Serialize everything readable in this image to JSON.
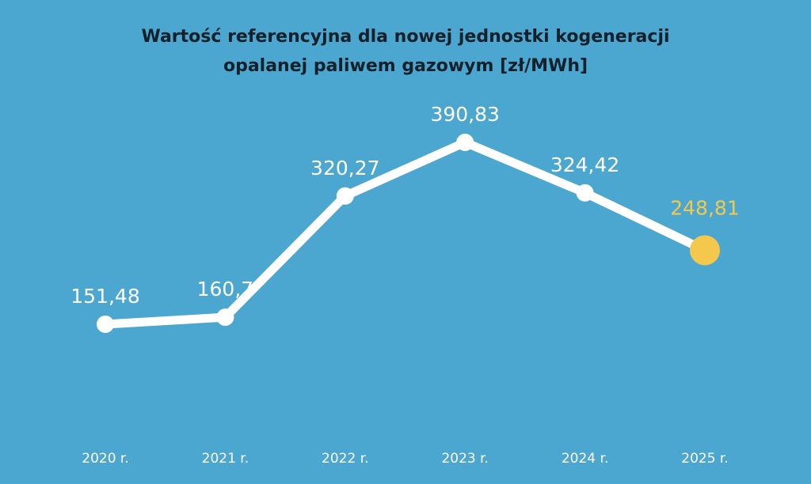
{
  "colors": {
    "background": "#4ba7cf",
    "line": "#ffffff",
    "highlight": "#f4c84c",
    "title_text": "#14202a",
    "label_text": "#ffffff"
  },
  "chart_data": {
    "type": "line",
    "title_lines": [
      "Wartość referencyjna dla nowej jednostki kogeneracji",
      "opalanej paliwem gazowym [zł/MWh]"
    ],
    "categories": [
      "2020 r.",
      "2021 r.",
      "2022 r.",
      "2023 r.",
      "2024 r.",
      "2025 r."
    ],
    "values": [
      151.48,
      160.7,
      320.27,
      390.83,
      324.42,
      248.81
    ],
    "value_labels": [
      "151,48",
      "160,7",
      "320,27",
      "390,83",
      "324,42",
      "248,81"
    ],
    "highlight_index": 5,
    "grid": false,
    "legend": "none"
  }
}
